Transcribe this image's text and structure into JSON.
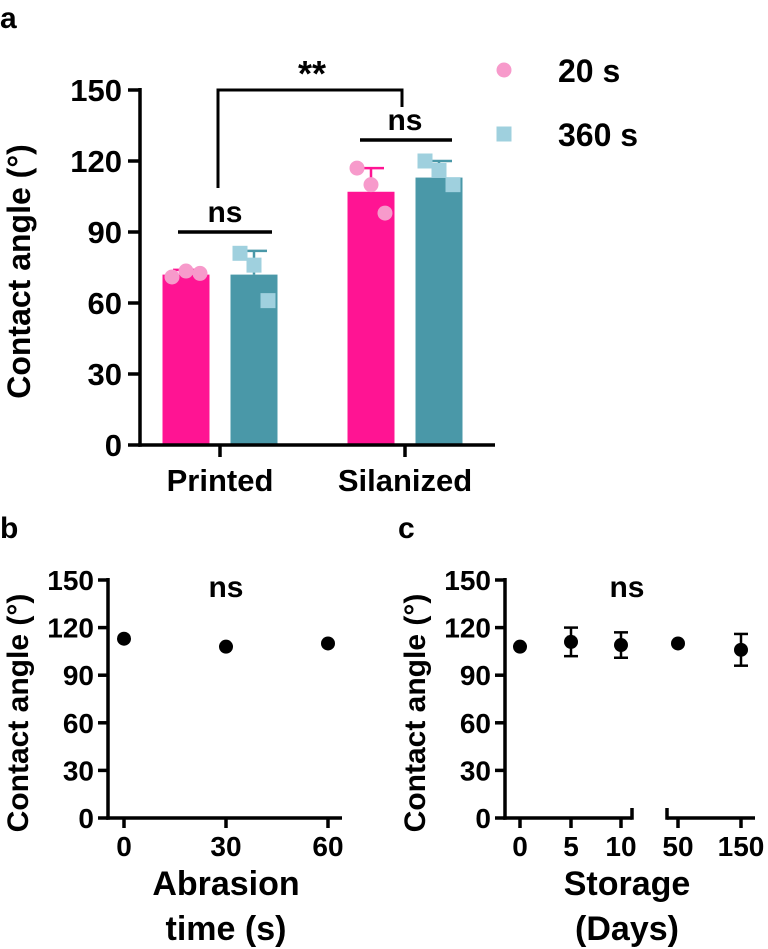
{
  "figure": {
    "panel_labels": [
      "a",
      "b",
      "c"
    ]
  },
  "colors": {
    "pink": "#FF1493",
    "teal": "#4A98A8",
    "pink_light": "#F79ACB",
    "teal_light": "#9FD0DE",
    "black": "#000000"
  },
  "chart_data": [
    {
      "panel": "a",
      "type": "bar",
      "ylabel": "Contact angle (°)",
      "ylim": [
        0,
        150
      ],
      "yticks": [
        0,
        30,
        60,
        90,
        120,
        150
      ],
      "categories": [
        "Printed",
        "Silanized"
      ],
      "legend_position": "top-right",
      "series": [
        {
          "name": "20 s",
          "marker": "circle",
          "values": [
            72,
            107
          ],
          "errors": [
            2,
            10
          ],
          "points": [
            [
              71,
              73.5,
              72.5
            ],
            [
              117,
              110,
              98
            ]
          ]
        },
        {
          "name": "360 s",
          "marker": "square",
          "values": [
            72,
            113
          ],
          "errors": [
            10,
            7
          ],
          "points": [
            [
              81,
              76,
              61
            ],
            [
              120,
              116,
              110
            ]
          ]
        }
      ],
      "annotations": [
        {
          "text": "**",
          "between": [
            "Printed",
            "Silanized"
          ]
        },
        {
          "text": "ns",
          "group": "Printed"
        },
        {
          "text": "ns",
          "group": "Silanized"
        }
      ]
    },
    {
      "panel": "b",
      "type": "scatter",
      "xlabel": "Abrasion time (s)",
      "ylabel": "Contact angle (°)",
      "xticks": [
        "0",
        "30",
        "60"
      ],
      "ylim": [
        0,
        150
      ],
      "yticks": [
        0,
        30,
        60,
        90,
        120,
        150
      ],
      "x": [
        0,
        30,
        60
      ],
      "y": [
        113,
        108,
        110
      ],
      "annotation": "ns"
    },
    {
      "panel": "c",
      "type": "scatter",
      "xlabel": "Storage (Days)",
      "ylabel": "Contact angle (°)",
      "xticks": [
        "0",
        "5",
        "10",
        "50",
        "150"
      ],
      "axis_break": "between 10 and 50",
      "ylim": [
        0,
        150
      ],
      "yticks": [
        0,
        30,
        60,
        90,
        120,
        150
      ],
      "x": [
        0,
        5,
        10,
        50,
        150
      ],
      "y": [
        108,
        111,
        109,
        110,
        106
      ],
      "errors": [
        2,
        9,
        8,
        1,
        10
      ],
      "annotation": "ns"
    }
  ]
}
